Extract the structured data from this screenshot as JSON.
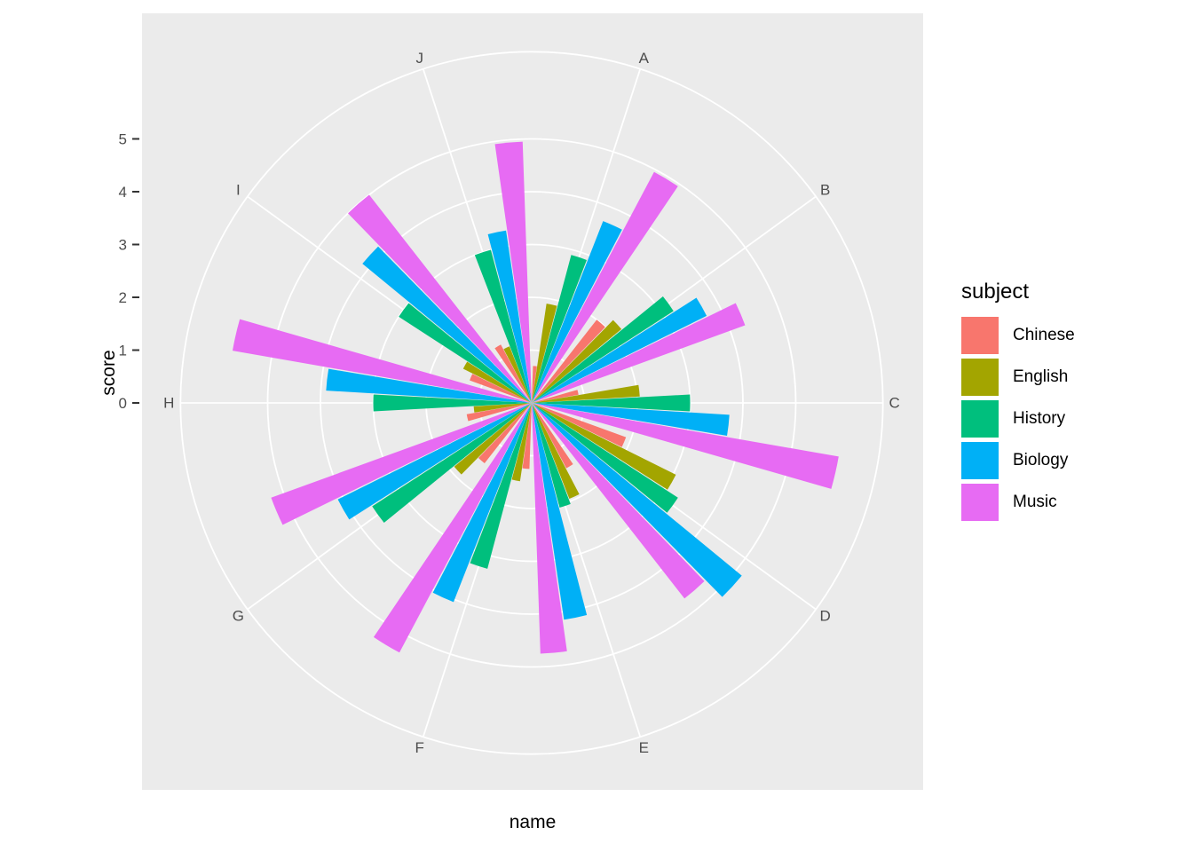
{
  "axes": {
    "y_title": "score",
    "x_title": "name",
    "tick_color": "#333333",
    "tick_label_color": "#4d4d4d"
  },
  "legend": {
    "title": "subject",
    "items": [
      {
        "label": "Chinese",
        "color": "#F8766D"
      },
      {
        "label": "English",
        "color": "#A3A500"
      },
      {
        "label": "History",
        "color": "#00BF7D"
      },
      {
        "label": "Biology",
        "color": "#00B0F6"
      },
      {
        "label": "Music",
        "color": "#E76BF3"
      }
    ]
  },
  "panel": {
    "bg": "#EBEBEB",
    "grid_color": "#FFFFFF",
    "label_color": "#4d4d4d"
  },
  "chart_data": {
    "type": "bar",
    "coord": "polar",
    "title": "",
    "xlabel": "name",
    "ylabel": "score",
    "categories": [
      "A",
      "B",
      "C",
      "D",
      "E",
      "F",
      "G",
      "H",
      "I",
      "J"
    ],
    "score_breaks": [
      0,
      1,
      2,
      3,
      4,
      5
    ],
    "r_outer_units": 6.65,
    "grid": true,
    "legend_position": "right",
    "series": [
      {
        "name": "Chinese",
        "color": "#F8766D",
        "values": [
          0.7,
          2.0,
          0.9,
          1.9,
          1.4,
          1.25,
          1.45,
          1.25,
          1.25,
          1.25
        ]
      },
      {
        "name": "English",
        "color": "#A3A500",
        "values": [
          1.9,
          2.2,
          2.05,
          3.05,
          1.95,
          1.5,
          1.9,
          1.1,
          1.45,
          1.15
        ]
      },
      {
        "name": "History",
        "color": "#00BF7D",
        "values": [
          2.9,
          3.2,
          3.0,
          3.3,
          2.05,
          3.25,
          3.6,
          3.0,
          3.0,
          3.0
        ]
      },
      {
        "name": "Biology",
        "color": "#00B0F6",
        "values": [
          3.7,
          3.7,
          3.75,
          5.15,
          4.15,
          4.05,
          4.1,
          3.9,
          4.15,
          3.3
        ]
      },
      {
        "name": "Music",
        "color": "#E76BF3",
        "values": [
          4.95,
          4.3,
          5.9,
          4.7,
          4.75,
          5.35,
          5.25,
          5.75,
          5.0,
          4.95
        ]
      }
    ]
  }
}
